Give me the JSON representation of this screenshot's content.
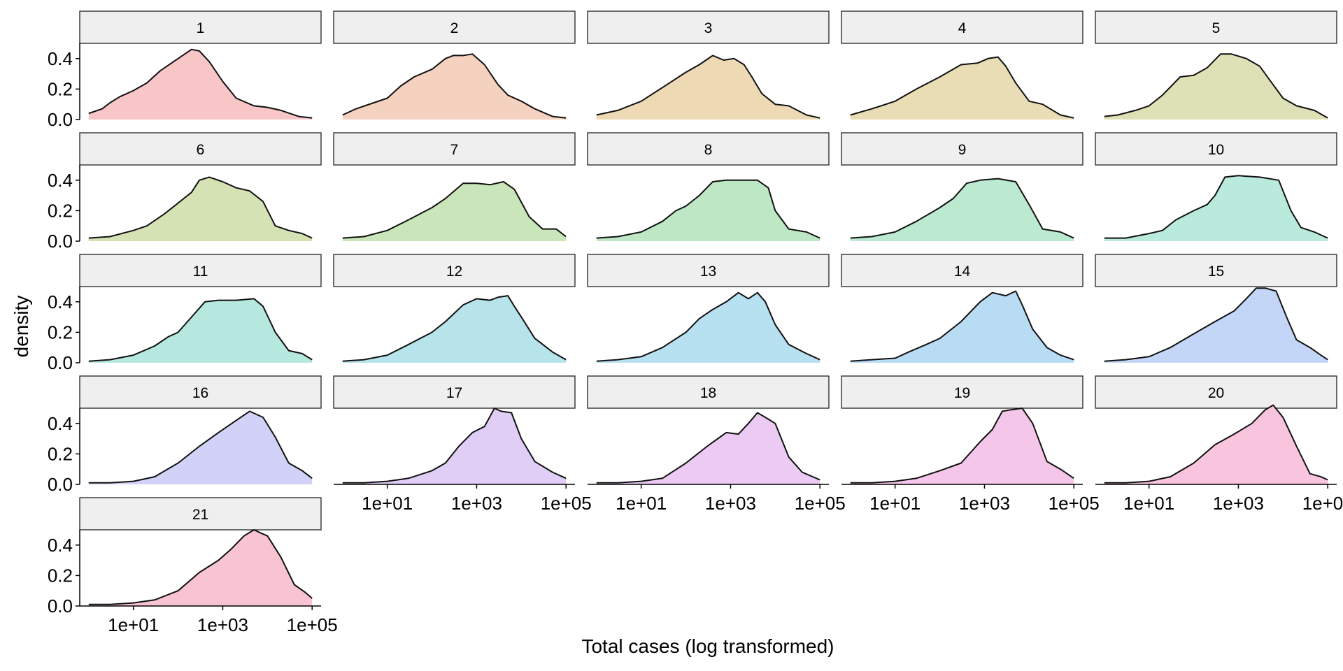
{
  "chart_data": {
    "type": "area",
    "subtype": "faceted-density",
    "xlabel": "Total cases (log transformed)",
    "ylabel": "density",
    "x_scale": "log10",
    "xlim": [
      0.631,
      158489
    ],
    "ylim": [
      0,
      0.5
    ],
    "x_ticks": [
      10,
      1000,
      100000
    ],
    "x_tick_labels": [
      "1e+01",
      "1e+03",
      "1e+05"
    ],
    "y_ticks": [
      0,
      0.2,
      0.4
    ],
    "y_tick_labels": [
      "0.0",
      "0.2",
      "0.4"
    ],
    "grid": false,
    "legend": "none",
    "layout": {
      "columns": 5,
      "rows": 5
    },
    "panels": [
      {
        "label": "1",
        "color": "#F8C6C7",
        "x": [
          1,
          2,
          3,
          5,
          10,
          20,
          40,
          100,
          200,
          300,
          500,
          1000,
          2000,
          5000,
          10000,
          20000,
          50000,
          100000
        ],
        "y": [
          0.04,
          0.07,
          0.11,
          0.15,
          0.19,
          0.24,
          0.32,
          0.4,
          0.46,
          0.45,
          0.38,
          0.25,
          0.14,
          0.09,
          0.08,
          0.06,
          0.02,
          0.01
        ]
      },
      {
        "label": "2",
        "color": "#F5D1BF",
        "x": [
          1,
          2,
          5,
          10,
          20,
          40,
          100,
          200,
          300,
          500,
          800,
          1500,
          3000,
          5000,
          10000,
          20000,
          50000,
          100000
        ],
        "y": [
          0.03,
          0.07,
          0.11,
          0.14,
          0.22,
          0.28,
          0.33,
          0.4,
          0.42,
          0.42,
          0.43,
          0.36,
          0.23,
          0.16,
          0.12,
          0.07,
          0.02,
          0.01
        ]
      },
      {
        "label": "3",
        "color": "#EDD9B4",
        "x": [
          1,
          3,
          10,
          30,
          100,
          200,
          400,
          700,
          1200,
          2000,
          3000,
          5000,
          10000,
          20000,
          50000,
          100000
        ],
        "y": [
          0.03,
          0.06,
          0.12,
          0.21,
          0.31,
          0.36,
          0.42,
          0.39,
          0.4,
          0.36,
          0.28,
          0.17,
          0.1,
          0.09,
          0.03,
          0.01
        ]
      },
      {
        "label": "4",
        "color": "#E9DDB5",
        "x": [
          1,
          3,
          10,
          30,
          100,
          300,
          700,
          1200,
          2000,
          3000,
          5000,
          10000,
          20000,
          50000,
          100000
        ],
        "y": [
          0.03,
          0.07,
          0.12,
          0.2,
          0.28,
          0.36,
          0.37,
          0.4,
          0.41,
          0.35,
          0.24,
          0.12,
          0.1,
          0.03,
          0.01
        ]
      },
      {
        "label": "5",
        "color": "#DEE1B5",
        "x": [
          1,
          2,
          5,
          10,
          20,
          50,
          100,
          200,
          400,
          700,
          1500,
          3000,
          5000,
          10000,
          20000,
          50000,
          100000
        ],
        "y": [
          0.02,
          0.03,
          0.06,
          0.09,
          0.16,
          0.28,
          0.29,
          0.34,
          0.43,
          0.43,
          0.4,
          0.35,
          0.26,
          0.14,
          0.09,
          0.06,
          0.01
        ]
      },
      {
        "label": "6",
        "color": "#D5E2B4",
        "x": [
          1,
          3,
          10,
          20,
          50,
          100,
          200,
          300,
          500,
          1000,
          2000,
          4000,
          8000,
          15000,
          30000,
          60000,
          100000
        ],
        "y": [
          0.02,
          0.03,
          0.07,
          0.1,
          0.18,
          0.25,
          0.32,
          0.4,
          0.42,
          0.39,
          0.35,
          0.33,
          0.26,
          0.1,
          0.07,
          0.05,
          0.02
        ]
      },
      {
        "label": "7",
        "color": "#C8E6BA",
        "x": [
          1,
          3,
          10,
          30,
          100,
          200,
          500,
          1000,
          2000,
          4000,
          7000,
          15000,
          30000,
          60000,
          100000
        ],
        "y": [
          0.02,
          0.03,
          0.07,
          0.14,
          0.22,
          0.28,
          0.38,
          0.38,
          0.37,
          0.39,
          0.34,
          0.16,
          0.08,
          0.08,
          0.03
        ]
      },
      {
        "label": "8",
        "color": "#BEE8C5",
        "x": [
          1,
          3,
          10,
          30,
          60,
          100,
          200,
          400,
          800,
          2000,
          4000,
          7000,
          10000,
          20000,
          50000,
          100000
        ],
        "y": [
          0.02,
          0.03,
          0.06,
          0.13,
          0.2,
          0.23,
          0.3,
          0.39,
          0.4,
          0.4,
          0.4,
          0.35,
          0.2,
          0.08,
          0.06,
          0.02
        ]
      },
      {
        "label": "9",
        "color": "#BBEAD0",
        "x": [
          1,
          3,
          10,
          30,
          100,
          200,
          400,
          800,
          2000,
          5000,
          10000,
          20000,
          50000,
          100000
        ],
        "y": [
          0.02,
          0.03,
          0.06,
          0.13,
          0.22,
          0.28,
          0.38,
          0.4,
          0.41,
          0.39,
          0.24,
          0.08,
          0.06,
          0.02
        ]
      },
      {
        "label": "10",
        "color": "#B9EADB",
        "x": [
          1,
          3,
          10,
          20,
          40,
          100,
          200,
          300,
          500,
          1000,
          3000,
          8000,
          15000,
          25000,
          50000,
          100000
        ],
        "y": [
          0.02,
          0.02,
          0.05,
          0.07,
          0.14,
          0.2,
          0.24,
          0.3,
          0.42,
          0.43,
          0.42,
          0.4,
          0.2,
          0.09,
          0.06,
          0.02
        ]
      },
      {
        "label": "11",
        "color": "#B7E8E0",
        "x": [
          1,
          3,
          10,
          30,
          60,
          100,
          200,
          400,
          800,
          2000,
          5000,
          8000,
          15000,
          30000,
          60000,
          100000
        ],
        "y": [
          0.01,
          0.02,
          0.05,
          0.11,
          0.17,
          0.2,
          0.3,
          0.4,
          0.41,
          0.41,
          0.42,
          0.37,
          0.2,
          0.08,
          0.06,
          0.02
        ]
      },
      {
        "label": "12",
        "color": "#B7E4EA",
        "x": [
          1,
          3,
          10,
          30,
          100,
          200,
          500,
          1000,
          2000,
          3000,
          5000,
          7000,
          10000,
          20000,
          50000,
          100000
        ],
        "y": [
          0.01,
          0.02,
          0.05,
          0.12,
          0.2,
          0.27,
          0.38,
          0.42,
          0.41,
          0.43,
          0.44,
          0.37,
          0.3,
          0.16,
          0.07,
          0.02
        ]
      },
      {
        "label": "13",
        "color": "#B7E0F1",
        "x": [
          1,
          3,
          10,
          30,
          100,
          200,
          400,
          800,
          1500,
          2500,
          4000,
          6000,
          10000,
          20000,
          50000,
          100000
        ],
        "y": [
          0.01,
          0.02,
          0.04,
          0.1,
          0.2,
          0.29,
          0.35,
          0.4,
          0.46,
          0.42,
          0.46,
          0.4,
          0.25,
          0.12,
          0.06,
          0.02
        ]
      },
      {
        "label": "14",
        "color": "#B9DCF5",
        "x": [
          1,
          3,
          10,
          20,
          50,
          100,
          300,
          800,
          1500,
          3000,
          5000,
          7000,
          12000,
          25000,
          50000,
          100000
        ],
        "y": [
          0.01,
          0.02,
          0.03,
          0.07,
          0.12,
          0.16,
          0.27,
          0.4,
          0.46,
          0.44,
          0.47,
          0.38,
          0.22,
          0.1,
          0.05,
          0.02
        ]
      },
      {
        "label": "15",
        "color": "#C3D6F8",
        "x": [
          1,
          3,
          10,
          30,
          100,
          300,
          800,
          1500,
          2500,
          4000,
          7000,
          12000,
          20000,
          40000,
          70000,
          100000
        ],
        "y": [
          0.01,
          0.02,
          0.04,
          0.1,
          0.19,
          0.27,
          0.34,
          0.42,
          0.49,
          0.49,
          0.47,
          0.3,
          0.15,
          0.1,
          0.05,
          0.02
        ]
      },
      {
        "label": "16",
        "color": "#D2D2F8",
        "x": [
          1,
          3,
          10,
          30,
          100,
          300,
          800,
          2000,
          4000,
          8000,
          15000,
          30000,
          60000,
          100000
        ],
        "y": [
          0.01,
          0.01,
          0.02,
          0.05,
          0.14,
          0.25,
          0.34,
          0.42,
          0.48,
          0.44,
          0.31,
          0.14,
          0.09,
          0.04
        ]
      },
      {
        "label": "17",
        "color": "#E0CEF7",
        "x": [
          1,
          3,
          10,
          30,
          100,
          200,
          400,
          800,
          1500,
          2500,
          3500,
          6000,
          10000,
          20000,
          50000,
          100000
        ],
        "y": [
          0.01,
          0.01,
          0.02,
          0.04,
          0.09,
          0.14,
          0.25,
          0.34,
          0.38,
          0.5,
          0.48,
          0.47,
          0.3,
          0.15,
          0.08,
          0.04
        ]
      },
      {
        "label": "18",
        "color": "#EBCAF3",
        "x": [
          1,
          3,
          10,
          30,
          100,
          300,
          800,
          1500,
          2500,
          4000,
          6000,
          10000,
          20000,
          40000,
          100000
        ],
        "y": [
          0.01,
          0.01,
          0.02,
          0.04,
          0.14,
          0.25,
          0.34,
          0.33,
          0.4,
          0.47,
          0.44,
          0.4,
          0.18,
          0.08,
          0.03
        ]
      },
      {
        "label": "19",
        "color": "#F4C6E9",
        "x": [
          1,
          3,
          10,
          30,
          100,
          300,
          800,
          1500,
          2500,
          4000,
          7000,
          12000,
          25000,
          50000,
          100000
        ],
        "y": [
          0.01,
          0.01,
          0.02,
          0.04,
          0.09,
          0.14,
          0.28,
          0.36,
          0.48,
          0.49,
          0.5,
          0.4,
          0.15,
          0.1,
          0.04
        ]
      },
      {
        "label": "20",
        "color": "#F8C4DE",
        "x": [
          1,
          3,
          10,
          30,
          100,
          300,
          800,
          2000,
          4000,
          6000,
          10000,
          20000,
          40000,
          70000,
          100000
        ],
        "y": [
          0.01,
          0.01,
          0.02,
          0.05,
          0.14,
          0.26,
          0.33,
          0.4,
          0.49,
          0.52,
          0.44,
          0.25,
          0.07,
          0.05,
          0.03
        ]
      },
      {
        "label": "21",
        "color": "#F9C4D1",
        "x": [
          1,
          3,
          10,
          30,
          100,
          300,
          800,
          1500,
          3000,
          5000,
          7000,
          10000,
          20000,
          40000,
          70000,
          100000
        ],
        "y": [
          0.01,
          0.01,
          0.02,
          0.04,
          0.1,
          0.22,
          0.3,
          0.37,
          0.46,
          0.5,
          0.48,
          0.46,
          0.32,
          0.14,
          0.09,
          0.05
        ]
      }
    ]
  }
}
